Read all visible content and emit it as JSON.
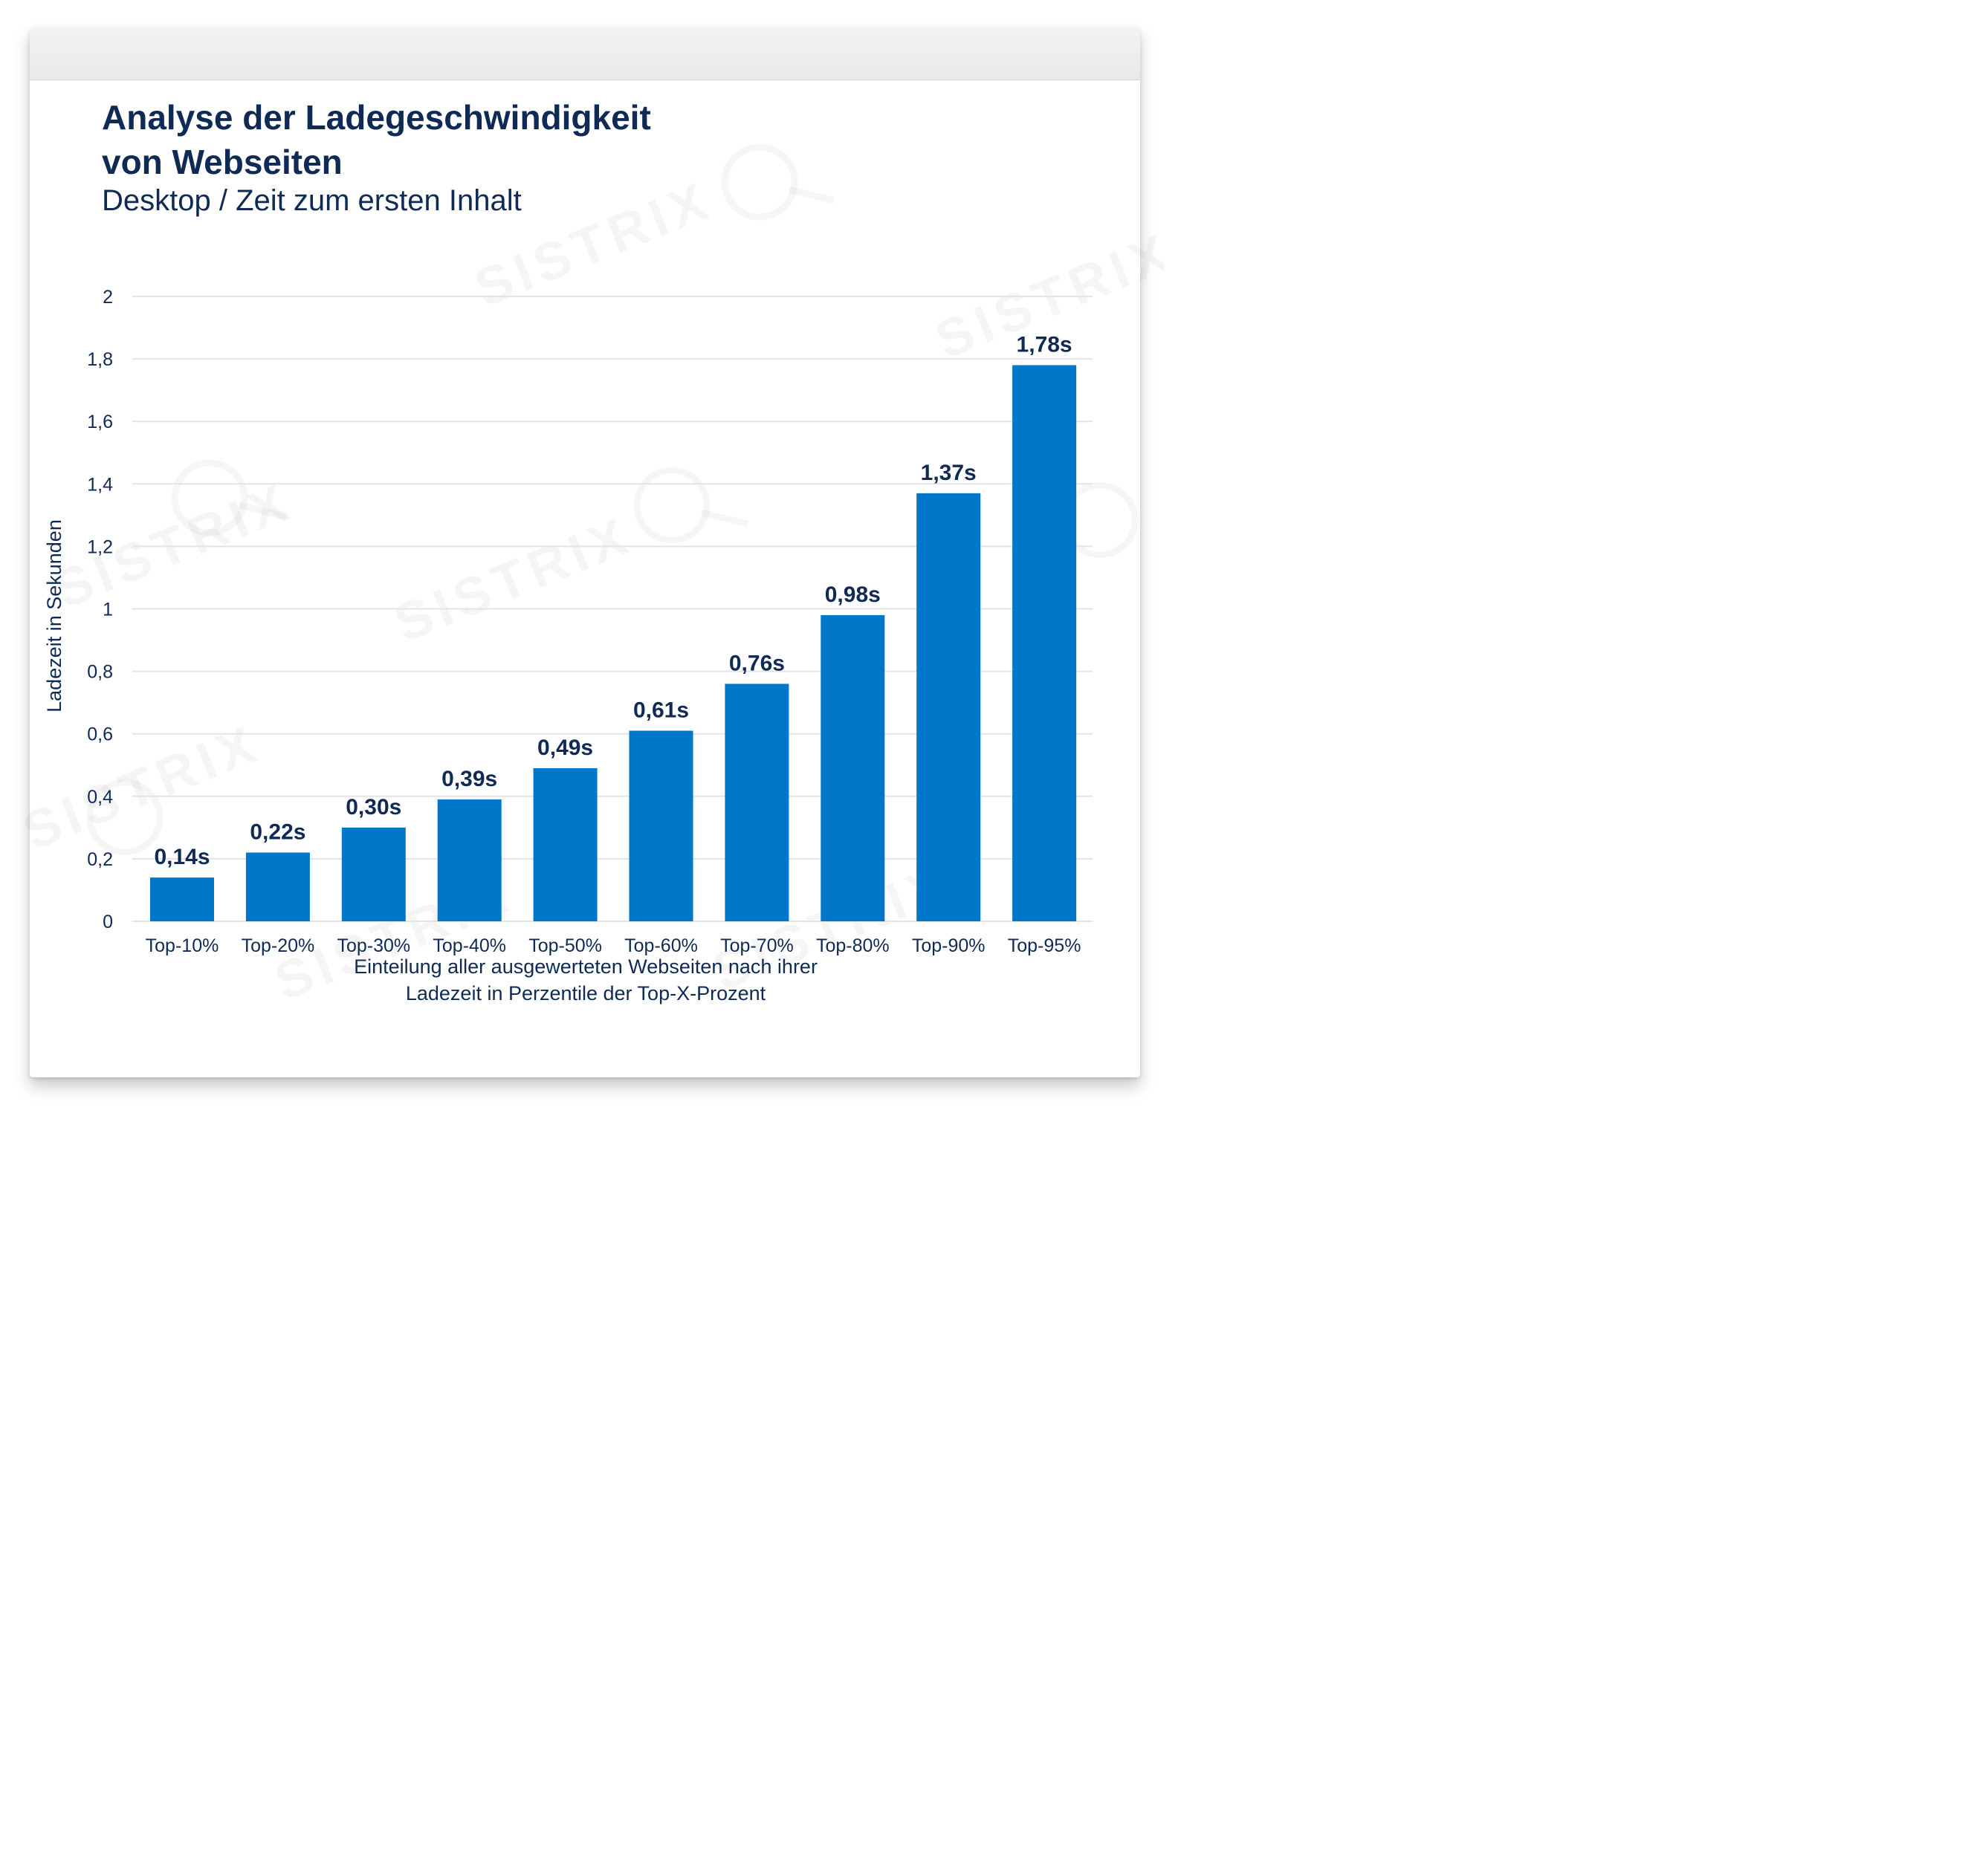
{
  "chart_data": {
    "type": "bar",
    "title_lines": [
      "Analyse der Ladegeschwindigkeit",
      "von Webseiten"
    ],
    "subtitle": "Desktop / Zeit zum ersten Inhalt",
    "categories": [
      "Top-10%",
      "Top-20%",
      "Top-30%",
      "Top-40%",
      "Top-50%",
      "Top-60%",
      "Top-70%",
      "Top-80%",
      "Top-90%",
      "Top-95%"
    ],
    "values": [
      0.14,
      0.22,
      0.3,
      0.39,
      0.49,
      0.61,
      0.76,
      0.98,
      1.37,
      1.78
    ],
    "value_labels": [
      "0,14s",
      "0,22s",
      "0,30s",
      "0,39s",
      "0,49s",
      "0,61s",
      "0,76s",
      "0,98s",
      "1,37s",
      "1,78s"
    ],
    "ylabel": "Ladezeit in Sekunden",
    "xlabel_lines": [
      "Einteilung aller ausgewerteten Webseiten nach ihrer",
      "Ladezeit in Perzentile der Top-X-Prozent"
    ],
    "ylim": [
      0,
      2
    ],
    "yticks": [
      0,
      0.2,
      0.4,
      0.6,
      0.8,
      1,
      1.2,
      1.4,
      1.6,
      1.8,
      2
    ],
    "ytick_labels": [
      "0",
      "0,2",
      "0,4",
      "0,6",
      "0,8",
      "1",
      "1,2",
      "1,4",
      "1,6",
      "1,8",
      "2"
    ],
    "grid": true,
    "legend": "none",
    "colors": {
      "bar": "#0077c8",
      "text": "#0e2a55",
      "grid": "#e4e4e4"
    }
  },
  "watermark": {
    "text": "SISTRIX"
  }
}
